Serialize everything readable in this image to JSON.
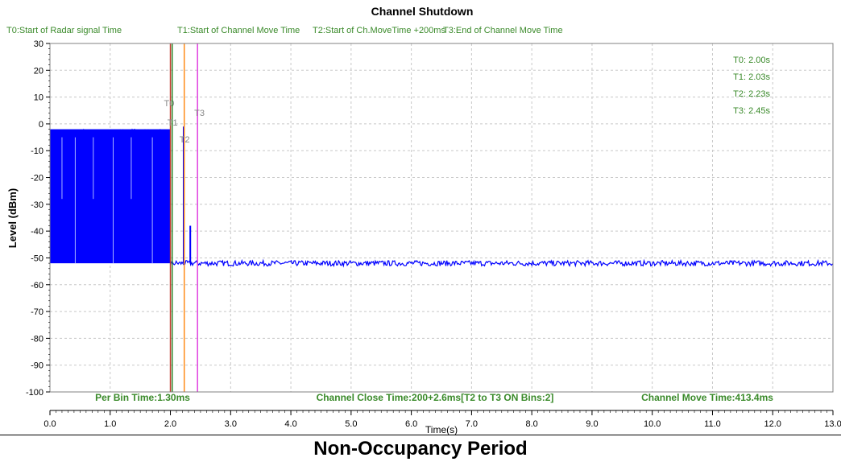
{
  "chart_data": {
    "type": "line",
    "title": "Channel Shutdown",
    "xlabel": "Time(s)",
    "ylabel": "Level (dBm)",
    "xlim": [
      0,
      13
    ],
    "ylim": [
      -100,
      30
    ],
    "xticks": [
      0.0,
      1.0,
      2.0,
      3.0,
      4.0,
      5.0,
      6.0,
      7.0,
      8.0,
      9.0,
      10.0,
      11.0,
      12.0,
      13.0
    ],
    "xtick_labels": [
      "0.0",
      "1.0",
      "2.0",
      "3.0",
      "4.0",
      "5.0",
      "6.0",
      "7.0",
      "8.0",
      "9.0",
      "10.0",
      "11.0",
      "12.0",
      "13.0"
    ],
    "yticks": [
      30,
      20,
      10,
      0,
      -10,
      -20,
      -30,
      -40,
      -50,
      -60,
      -70,
      -80,
      -90,
      -100
    ],
    "ytick_labels": [
      "30",
      "20",
      "10",
      "0",
      "-10",
      "-20",
      "-30",
      "-40",
      "-50",
      "-60",
      "-70",
      "-80",
      "-90",
      "-100"
    ],
    "grid": true,
    "legend": [
      {
        "label": "T0:Start of Radar signal Time",
        "color": "#3a8a2a"
      },
      {
        "label": "T1:Start of Channel Move Time",
        "color": "#3a8a2a"
      },
      {
        "label": "T2:Start of Ch.MoveTime +200ms",
        "color": "#3a8a2a"
      },
      {
        "label": "T3:End of Channel Move Time",
        "color": "#3a8a2a"
      }
    ],
    "markers": [
      {
        "name": "T0",
        "x": 2.0,
        "color": "#c0392b"
      },
      {
        "name": "T1",
        "x": 2.03,
        "color": "#2e8b2e"
      },
      {
        "name": "T2",
        "x": 2.23,
        "color": "#ff8c1a"
      },
      {
        "name": "T3",
        "x": 2.45,
        "color": "#e040e0"
      }
    ],
    "marker_readouts": [
      "T0: 2.00s",
      "T1: 2.03s",
      "T2: 2.23s",
      "T3: 2.45s"
    ],
    "annotations": [
      "Per Bin Time:1.30ms",
      "Channel Close Time:200+2.6ms[T2 to T3 ON Bins:2]",
      "Channel Move Time:413.4ms"
    ],
    "series": [
      {
        "color": "#0000ff",
        "segments": [
          {
            "x_start": 0.0,
            "x_end": 2.0,
            "level_min": -52,
            "level_max": -2
          },
          {
            "x_start": 2.0,
            "x_end": 13.0,
            "level_min": -53,
            "level_max": -51
          }
        ],
        "spikes": [
          {
            "x": 2.22,
            "level": -1
          },
          {
            "x": 2.33,
            "level": -38
          }
        ]
      }
    ],
    "series_color": "#0000ff"
  },
  "caption": "Non-Occupancy Period"
}
